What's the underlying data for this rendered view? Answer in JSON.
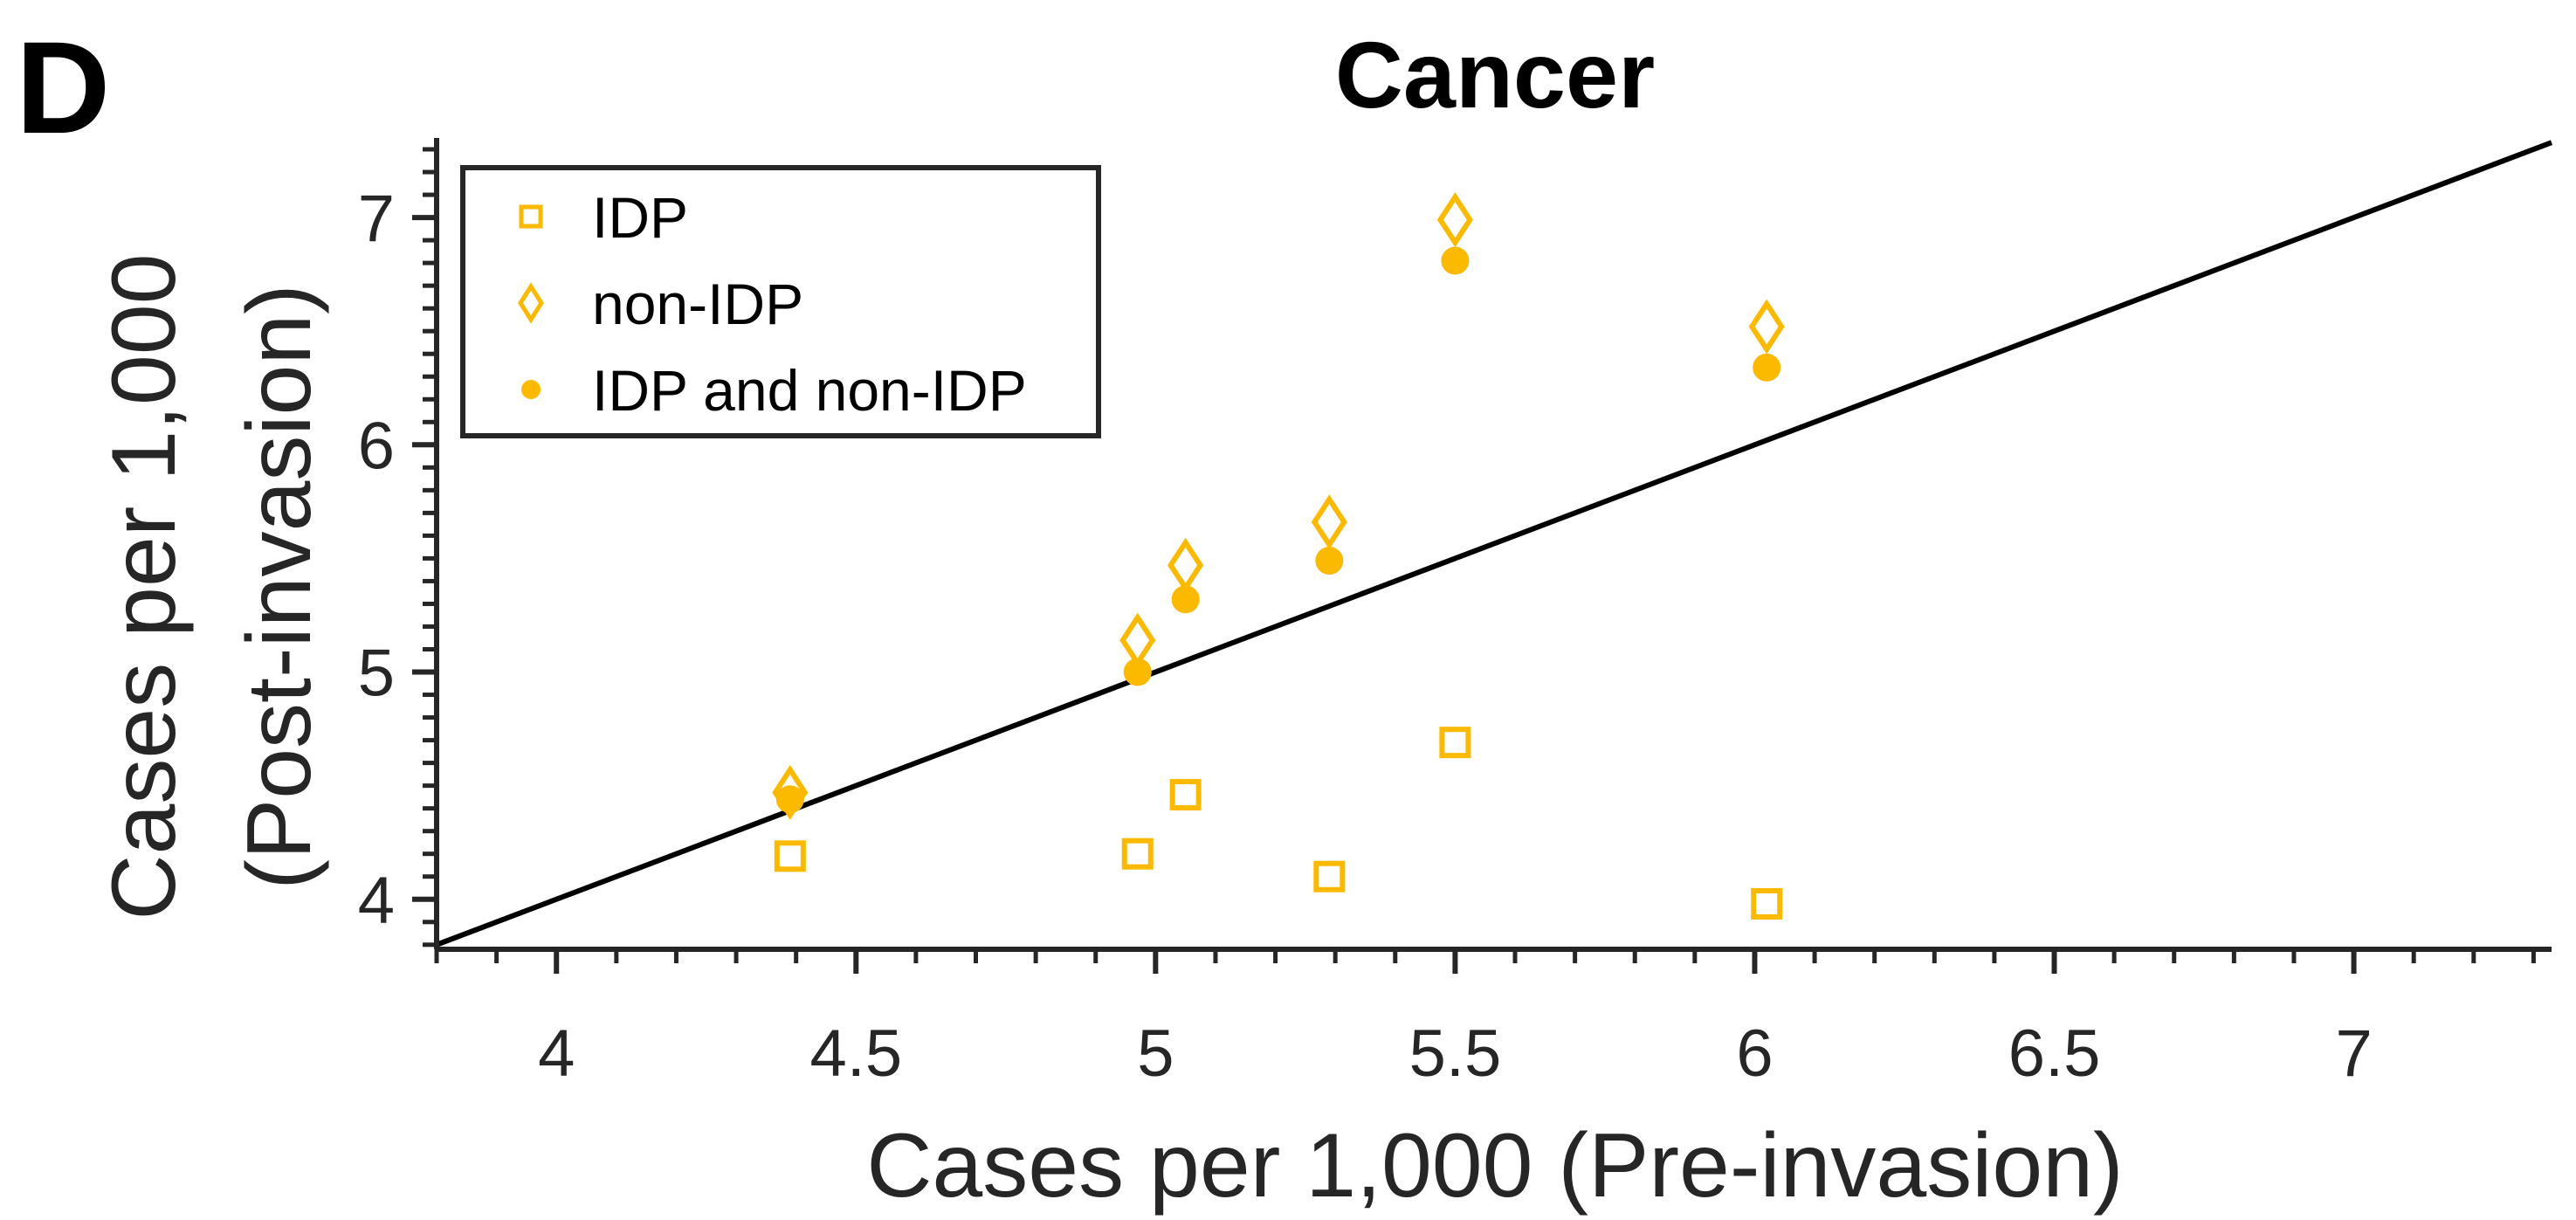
{
  "panel_label": "D",
  "chart_data": {
    "type": "scatter",
    "title": "Cancer",
    "xlabel": "Cases per 1,000 (Pre-invasion)",
    "ylabel_lines": [
      "Cases per 1,000",
      "(Post-invasion)"
    ],
    "xlim": [
      3.8,
      7.33
    ],
    "ylim": [
      3.78,
      7.35
    ],
    "x_ticks": [
      4,
      4.5,
      5,
      5.5,
      6,
      6.5,
      7
    ],
    "x_tick_labels": [
      "4",
      "4.5",
      "5",
      "5.5",
      "6",
      "6.5",
      "7"
    ],
    "y_ticks": [
      4,
      5,
      6,
      7
    ],
    "y_tick_labels": [
      "4",
      "5",
      "6",
      "7"
    ],
    "x_minor_step": 0.1,
    "y_minor_step": 0.1,
    "grid": false,
    "legend_position": "top-left",
    "reference_line": {
      "type": "identity",
      "color": "#000000"
    },
    "series": [
      {
        "name": "IDP",
        "marker": "square-open",
        "color": "#FBB900",
        "points": [
          [
            4.39,
            4.19
          ],
          [
            4.97,
            4.2
          ],
          [
            5.05,
            4.46
          ],
          [
            5.29,
            4.1
          ],
          [
            5.5,
            4.69
          ],
          [
            6.02,
            3.98
          ]
        ]
      },
      {
        "name": "non-IDP",
        "marker": "diamond-open",
        "color": "#FBB900",
        "points": [
          [
            4.39,
            4.47
          ],
          [
            4.97,
            5.14
          ],
          [
            5.05,
            5.47
          ],
          [
            5.29,
            5.66
          ],
          [
            5.5,
            6.99
          ],
          [
            6.02,
            6.52
          ]
        ]
      },
      {
        "name": "IDP and non-IDP",
        "marker": "circle-filled",
        "color": "#FBB900",
        "points": [
          [
            4.39,
            4.44
          ],
          [
            4.97,
            5.0
          ],
          [
            5.05,
            5.32
          ],
          [
            5.29,
            5.49
          ],
          [
            5.5,
            6.81
          ],
          [
            6.02,
            6.34
          ]
        ]
      }
    ]
  }
}
